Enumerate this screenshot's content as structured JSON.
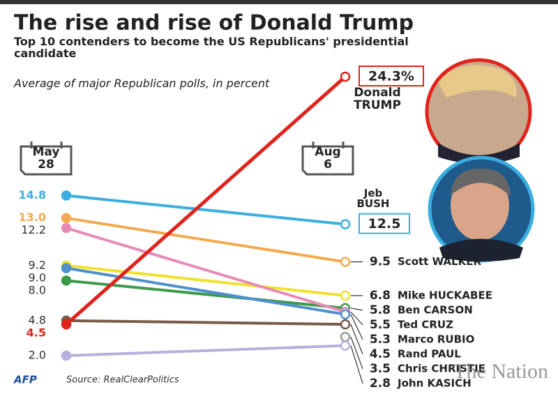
{
  "chart_data": {
    "type": "slope",
    "title": "The rise and rise of Donald Trump",
    "subtitle": "Top 10 contenders to become the US Republicans' presidential candidate",
    "note": "Average of major Republican polls, in percent",
    "categories": [
      "May 28",
      "Aug 6"
    ],
    "series": [
      {
        "name": "Jeb BUSH",
        "color": "#3aaee0",
        "values": [
          14.8,
          12.5
        ],
        "value_labels": [
          "14.8",
          "12.5"
        ],
        "highlight": true,
        "callout": true
      },
      {
        "name": "Scott WALKER",
        "color": "#f5a94e",
        "values": [
          13.0,
          9.5
        ],
        "value_labels": [
          "13.0",
          "9.5"
        ],
        "highlight": true
      },
      {
        "name": "Mike HUCKABEE",
        "color": "#efe22a",
        "values": [
          9.2,
          6.8
        ],
        "value_labels": [
          "9.2",
          "6.8"
        ]
      },
      {
        "name": "Ben CARSON",
        "color": "#3c9a4a",
        "values": [
          8.0,
          5.8
        ],
        "value_labels": [
          "8.0",
          "5.8"
        ]
      },
      {
        "name": "Ted CRUZ",
        "color": "#e58bb5",
        "values": [
          12.2,
          5.5
        ],
        "value_labels": [
          "12.2",
          "5.5"
        ]
      },
      {
        "name": "Marco RUBIO",
        "color": "#4f8fcc",
        "values": [
          9.0,
          5.3
        ],
        "value_labels": [
          "9.0",
          "5.3"
        ]
      },
      {
        "name": "Rand PAUL",
        "color": "#7a5a4a",
        "values": [
          4.8,
          4.5
        ],
        "value_labels": [
          "4.8",
          "4.5"
        ]
      },
      {
        "name": "Chris CHRISTIE",
        "color": "#9a9a9a",
        "values": [
          null,
          3.5
        ],
        "value_labels": [
          null,
          "3.5"
        ]
      },
      {
        "name": "John KASICH",
        "color": "#b7b0dc",
        "values": [
          2.0,
          2.8
        ],
        "value_labels": [
          "2.0",
          "2.8"
        ]
      },
      {
        "name": "Donald TRUMP",
        "color": "#e0231b",
        "values": [
          4.5,
          24.3
        ],
        "value_labels": [
          "4.5",
          "24.3%"
        ],
        "highlight": true,
        "callout": true
      }
    ],
    "logo": "AFP",
    "source": "Source: RealClearPolitics",
    "watermark": "The Nation"
  }
}
